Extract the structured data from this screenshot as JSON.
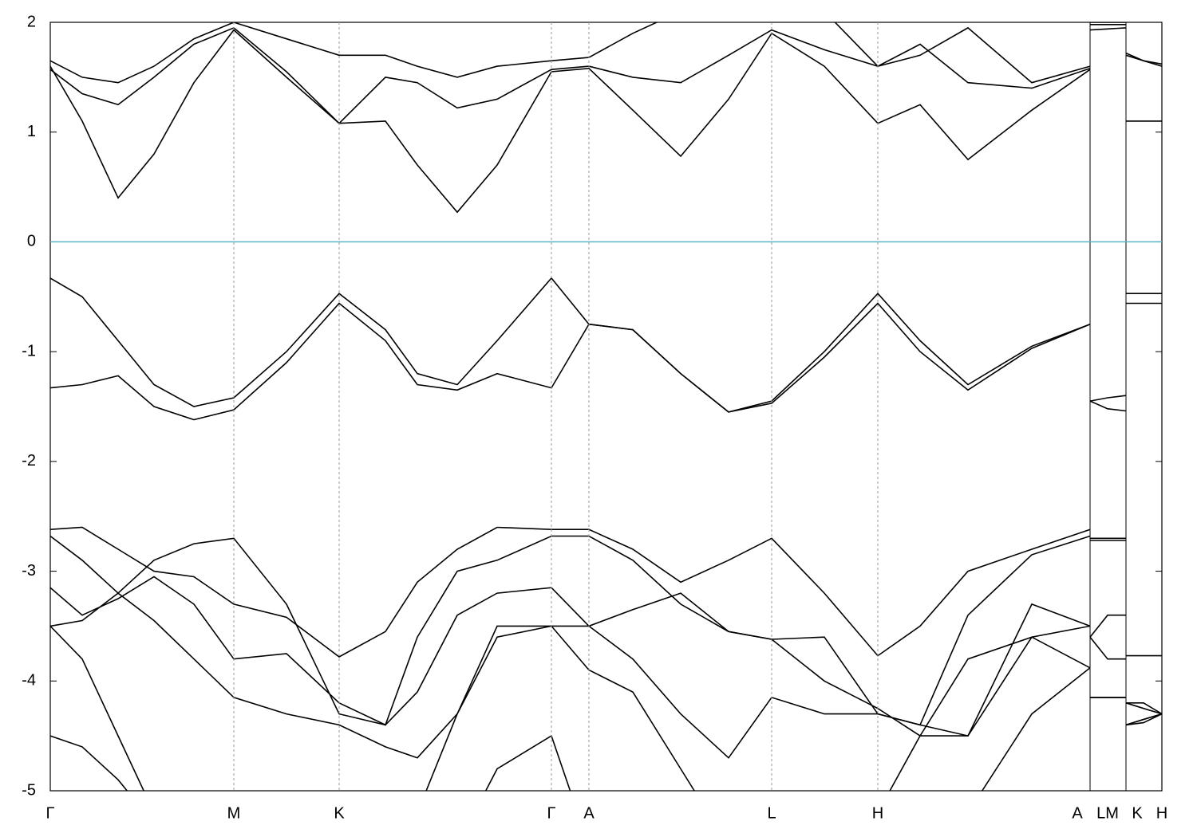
{
  "chart_data": {
    "type": "line",
    "x": [
      0,
      40,
      85,
      130,
      180,
      230,
      296,
      362,
      420,
      460,
      510,
      560,
      628,
      675,
      730,
      790,
      850,
      904,
      970,
      1037,
      1090,
      1150,
      1230,
      1303,
      1303,
      1303,
      1325,
      1348,
      1348,
      1348,
      1370,
      1393
    ],
    "xlim": [
      0,
      1393
    ],
    "xticks": [
      {
        "value": 0,
        "label": "Γ"
      },
      {
        "value": 230,
        "label": "M"
      },
      {
        "value": 362,
        "label": "K"
      },
      {
        "value": 628,
        "label": "Γ"
      },
      {
        "value": 675,
        "label": "A"
      },
      {
        "value": 904,
        "label": "L"
      },
      {
        "value": 1037,
        "label": "H"
      },
      {
        "value": 1287,
        "label": "A"
      },
      {
        "value": 1325,
        "label": "LM"
      },
      {
        "value": 1362,
        "label": "K"
      },
      {
        "value": 1393,
        "label": "H"
      }
    ],
    "xgrid": [
      230,
      362,
      628,
      675,
      904,
      1037
    ],
    "xbreaks": [
      1303,
      1348
    ],
    "ylim": [
      -5,
      2
    ],
    "yticks": [
      -5,
      -4,
      -3,
      -2,
      -1,
      0,
      1,
      2
    ],
    "fermi_level": 0,
    "fermi_color": "#5ab4c8",
    "series": [
      {
        "color": "#000000",
        "values": [
          -0.33,
          -0.5,
          -0.9,
          -1.3,
          -1.5,
          -1.42,
          -1.0,
          -0.47,
          -0.8,
          -1.2,
          -1.3,
          -0.9,
          -0.33,
          -0.75,
          -0.8,
          -1.2,
          -1.55,
          -1.45,
          -1.0,
          -0.47,
          -0.9,
          -1.3,
          -0.95,
          -0.75,
          null,
          -1.45,
          -1.42,
          -1.4,
          null,
          -0.47,
          -0.47,
          -0.47
        ]
      },
      {
        "color": "#000000",
        "values": [
          -1.33,
          -1.3,
          -1.22,
          -1.5,
          -1.62,
          -1.53,
          -1.1,
          -0.56,
          -0.9,
          -1.3,
          -1.35,
          -1.2,
          -1.33,
          -0.75,
          -0.8,
          -1.2,
          -1.55,
          -1.47,
          -1.05,
          -0.56,
          -1.0,
          -1.35,
          -0.97,
          -0.75,
          null,
          -1.45,
          -1.52,
          -1.54,
          null,
          -0.56,
          -0.56,
          -0.56
        ]
      },
      {
        "color": "#000000",
        "values": [
          1.6,
          1.1,
          0.4,
          0.8,
          1.45,
          1.93,
          1.5,
          1.08,
          1.1,
          0.7,
          0.27,
          0.7,
          1.55,
          1.58,
          1.2,
          0.78,
          1.3,
          1.9,
          1.6,
          1.08,
          1.25,
          0.75,
          1.2,
          1.57,
          null,
          2.0,
          2.0,
          2.0,
          null,
          1.1,
          1.1,
          1.1
        ]
      },
      {
        "color": "#000000",
        "values": [
          1.57,
          1.35,
          1.25,
          1.5,
          1.8,
          1.95,
          1.55,
          1.08,
          1.5,
          1.45,
          1.22,
          1.3,
          1.57,
          1.6,
          1.5,
          1.45,
          1.7,
          1.93,
          1.75,
          1.6,
          1.8,
          1.45,
          1.4,
          1.58,
          null,
          1.93,
          1.94,
          1.95,
          null,
          1.72,
          1.65,
          1.6
        ]
      },
      {
        "color": "#000000",
        "values": [
          1.65,
          1.5,
          1.45,
          1.6,
          1.85,
          2.0,
          1.85,
          1.7,
          1.7,
          1.6,
          1.5,
          1.6,
          1.65,
          1.68,
          1.9,
          2.1,
          2.1,
          2.0,
          2.1,
          1.6,
          1.7,
          1.95,
          1.45,
          1.6,
          null,
          1.98,
          1.98,
          1.98,
          null,
          1.7,
          1.65,
          1.62
        ]
      },
      {
        "color": "#000000",
        "values": [
          -2.62,
          -2.6,
          -2.8,
          -3.0,
          -3.05,
          -3.3,
          -3.42,
          -3.78,
          -3.55,
          -3.1,
          -2.8,
          -2.6,
          -2.62,
          -2.62,
          -2.8,
          -3.1,
          -2.9,
          -2.7,
          -3.2,
          -3.77,
          -3.5,
          -3.0,
          -2.8,
          -2.62,
          null,
          -2.7,
          -2.7,
          -2.7,
          null,
          -3.77,
          -3.77,
          -3.77
        ]
      },
      {
        "color": "#000000",
        "values": [
          -2.68,
          -2.9,
          -3.2,
          -2.9,
          -2.75,
          -2.7,
          -3.3,
          -4.3,
          -4.4,
          -3.6,
          -3.0,
          -2.9,
          -2.68,
          -2.68,
          -2.9,
          -3.3,
          -3.55,
          -3.62,
          -3.6,
          -4.3,
          -4.4,
          -3.4,
          -2.85,
          -2.68,
          null,
          -2.72,
          -2.72,
          -2.72,
          null,
          -4.2,
          -4.25,
          -4.3
        ]
      },
      {
        "color": "#000000",
        "values": [
          -3.15,
          -3.4,
          -3.25,
          -3.05,
          -3.3,
          -3.8,
          -3.75,
          -4.2,
          -4.4,
          -4.1,
          -3.4,
          -3.2,
          -3.15,
          -3.5,
          -3.35,
          -3.2,
          -3.55,
          -3.62,
          -4.0,
          -4.25,
          -4.5,
          -4.5,
          -3.6,
          -3.5,
          null,
          -3.6,
          -3.8,
          -3.8,
          null,
          -4.4,
          -4.35,
          -4.3
        ]
      },
      {
        "color": "#000000",
        "values": [
          -3.5,
          -3.45,
          -3.2,
          -3.45,
          -3.8,
          -4.15,
          -4.3,
          -4.4,
          -4.6,
          -4.7,
          -4.3,
          -3.6,
          -3.5,
          -3.5,
          -3.8,
          -4.3,
          -4.7,
          -4.15,
          -4.3,
          -4.3,
          -4.4,
          -4.5,
          -3.3,
          -3.5,
          null,
          -3.6,
          -3.4,
          -3.4,
          null,
          -4.4,
          -4.35,
          -4.3
        ]
      },
      {
        "color": "#000000",
        "values": [
          -3.5,
          -3.8,
          -4.5,
          -5.2,
          -5.5,
          -5.5,
          -5.5,
          -5.5,
          -5.5,
          -5.2,
          -4.3,
          -3.5,
          -3.5,
          -3.9,
          -4.1,
          -4.8,
          -5.5,
          -5.5,
          -5.5,
          -5.2,
          -4.5,
          -3.8,
          -3.6,
          -3.88,
          null,
          -4.15,
          -4.15,
          -4.15,
          null,
          -4.2,
          -4.2,
          -4.3
        ]
      },
      {
        "color": "#000000",
        "values": [
          -4.5,
          -4.6,
          -4.9,
          -5.3,
          -5.5,
          -5.5,
          -5.5,
          -5.5,
          -5.5,
          -5.5,
          -5.5,
          -4.8,
          -4.5,
          -5.5,
          -5.5,
          -5.5,
          -5.5,
          -5.5,
          -5.5,
          -5.5,
          -5.5,
          -5.2,
          -4.3,
          -3.88,
          null,
          -4.15,
          -4.15,
          -4.15,
          null,
          -4.4,
          -4.38,
          -4.3
        ]
      }
    ]
  }
}
